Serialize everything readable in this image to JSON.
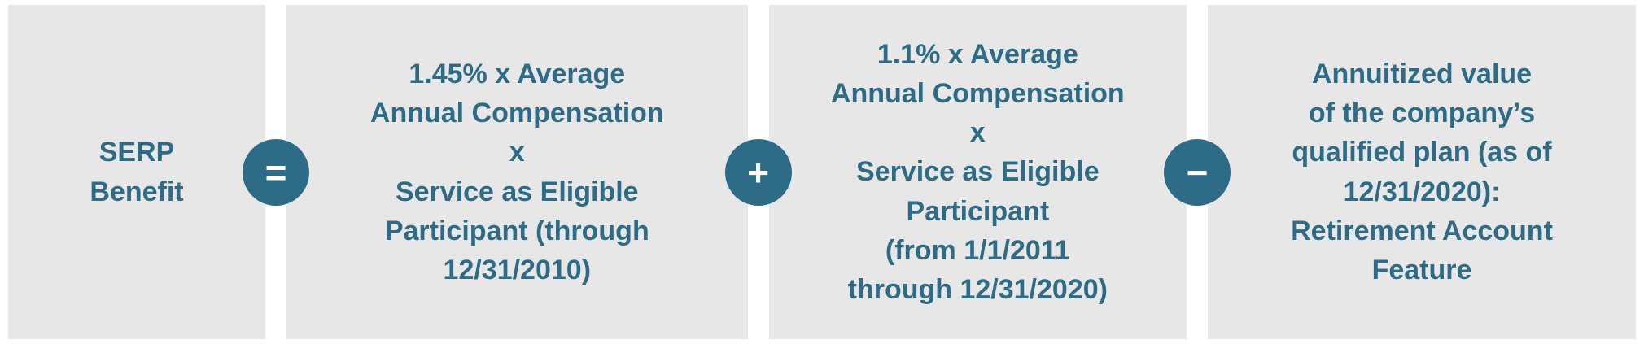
{
  "colors": {
    "accent_teal": "#2e6b87",
    "box_background": "#e8e7e7",
    "operator_symbol_color": "#ffffff",
    "page_background": "#ffffff"
  },
  "formula": {
    "result_text": "SERP\nBenefit",
    "operators": [
      "=",
      "+",
      "−"
    ],
    "terms": [
      {
        "text": "1.45% x Average\nAnnual Compensation\nx\nService as Eligible\nParticipant (through\n12/31/2010)"
      },
      {
        "text": "1.1% x Average\nAnnual Compensation\nx\nService as Eligible\nParticipant\n(from 1/1/2011\nthrough 12/31/2020)"
      },
      {
        "text": "Annuitized value\nof the company’s\nqualified plan (as of\n12/31/2020):\nRetirement Account\nFeature"
      }
    ]
  }
}
